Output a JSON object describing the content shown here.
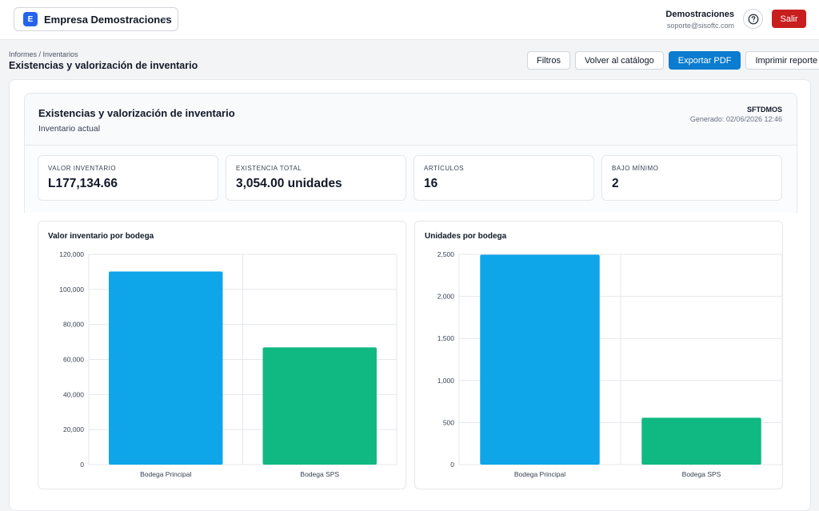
{
  "topbar": {
    "company_initial": "E",
    "company_name": "Empresa Demostraciones",
    "user_name": "Demostraciones",
    "user_email": "soporte@sisoftc.com",
    "logout_label": "Salir"
  },
  "page": {
    "breadcrumb": "Informes / Inventarios",
    "title": "Existencias y valorización de inventario",
    "actions": {
      "filters": "Filtros",
      "back": "Volver al catálogo",
      "export_pdf": "Exportar PDF",
      "print": "Imprimir reporte"
    }
  },
  "report": {
    "title": "Existencias y valorización de inventario",
    "subtitle": "Inventario actual",
    "code": "SFTDMOS",
    "generated": "Generado: 02/06/2026 12:46"
  },
  "kpis": [
    {
      "label": "VALOR INVENTARIO",
      "value": "L177,134.66"
    },
    {
      "label": "EXISTENCIA TOTAL",
      "value": "3,054.00 unidades"
    },
    {
      "label": "ARTÍCULOS",
      "value": "16"
    },
    {
      "label": "BAJO MÍNIMO",
      "value": "2"
    }
  ],
  "colors": {
    "bar_primary": "#0ea5e9",
    "bar_secondary": "#10b981",
    "logout": "#c81e1e",
    "export": "#0b7ccf",
    "badge": "#2563eb"
  },
  "icons": {
    "company_chevron": "chevron-down-icon",
    "help": "question-circle-icon"
  },
  "chart_data": [
    {
      "type": "bar",
      "title": "Valor inventario por bodega",
      "categories": [
        "Bodega Principal",
        "Bodega SPS"
      ],
      "values": [
        110200,
        66900
      ],
      "yticks": [
        "0",
        "20,000",
        "40,000",
        "60,000",
        "80,000",
        "100,000",
        "120,000"
      ],
      "ylim": [
        0,
        120000
      ],
      "grid": true,
      "legend": "none"
    },
    {
      "type": "bar",
      "title": "Unidades por bodega",
      "categories": [
        "Bodega Principal",
        "Bodega SPS"
      ],
      "values": [
        2495,
        557
      ],
      "yticks": [
        "0",
        "500",
        "1,000",
        "1,500",
        "2,000",
        "2,500"
      ],
      "ylim": [
        0,
        2500
      ],
      "grid": true,
      "legend": "none"
    }
  ]
}
